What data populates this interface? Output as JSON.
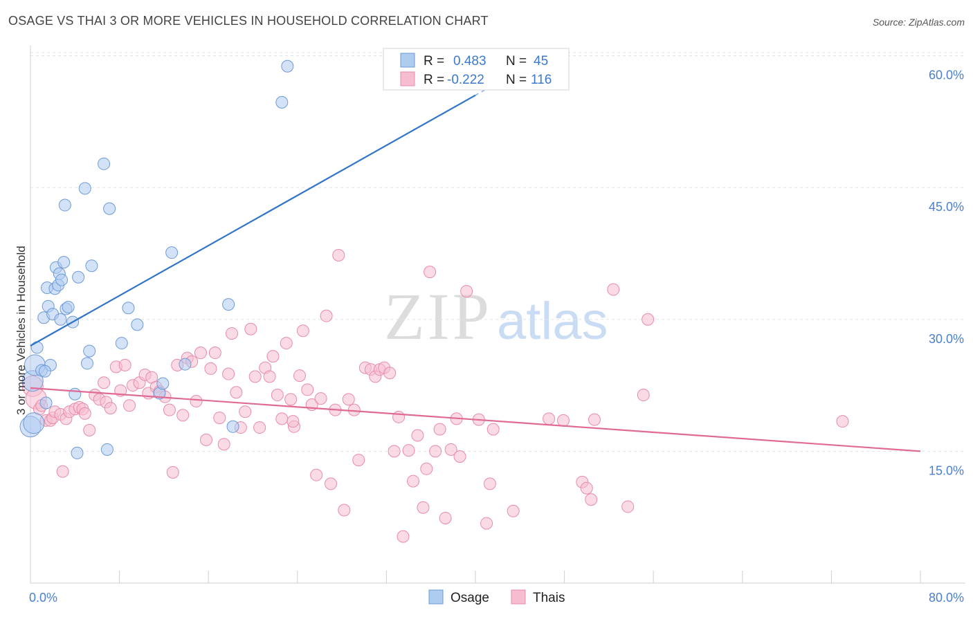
{
  "header": {
    "title": "OSAGE VS THAI 3 OR MORE VEHICLES IN HOUSEHOLD CORRELATION CHART",
    "source": "Source: ZipAtlas.com"
  },
  "watermark": {
    "zip": "ZIP",
    "atlas": "atlas"
  },
  "legend": {
    "osage": {
      "r_label": "R =",
      "r_value": "0.483",
      "n_label": "N =",
      "n_value": "45"
    },
    "thais": {
      "r_label": "R =",
      "r_value": "-0.222",
      "n_label": "N =",
      "n_value": "116"
    }
  },
  "colors": {
    "osage_fill": "#aecbf0",
    "osage_stroke": "#6c9ad8",
    "osage_line": "#2f74c8",
    "thais_fill": "#f6bdd0",
    "thais_stroke": "#e88aa9",
    "thais_line": "#e06a96",
    "grid": "#e3e3e3",
    "tick_label": "#4a7fd0"
  },
  "chart_data": {
    "type": "scatter",
    "title": "OSAGE VS THAI 3 OR MORE VEHICLES IN HOUSEHOLD CORRELATION CHART",
    "xlabel": "",
    "ylabel": "3 or more Vehicles in Household",
    "xlim": [
      0,
      80
    ],
    "ylim": [
      0,
      60
    ],
    "x_tick_labels": [
      "0.0%",
      "80.0%"
    ],
    "y_ticks": [
      15,
      30,
      45,
      60
    ],
    "y_tick_labels": [
      "15.0%",
      "30.0%",
      "45.0%",
      "60.0%"
    ],
    "legend_bottom": [
      "Osage",
      "Thais"
    ],
    "series": [
      {
        "name": "Osage",
        "trend": {
          "x0": 0,
          "y0": 27.0,
          "x1": 40,
          "y1": 55.5,
          "dashed_to_x": 46
        },
        "points": [
          [
            0.0,
            17.8
          ],
          [
            0.2,
            23.0
          ],
          [
            0.4,
            24.8
          ],
          [
            0.6,
            26.8
          ],
          [
            1.0,
            24.2
          ],
          [
            1.2,
            30.2
          ],
          [
            1.4,
            20.5
          ],
          [
            1.5,
            33.6
          ],
          [
            1.6,
            31.5
          ],
          [
            1.8,
            24.8
          ],
          [
            2.0,
            30.6
          ],
          [
            2.2,
            33.5
          ],
          [
            2.3,
            35.9
          ],
          [
            2.5,
            33.9
          ],
          [
            2.6,
            35.2
          ],
          [
            2.7,
            30.0
          ],
          [
            2.8,
            34.5
          ],
          [
            3.0,
            36.5
          ],
          [
            3.1,
            43.0
          ],
          [
            3.2,
            31.2
          ],
          [
            3.4,
            31.4
          ],
          [
            3.8,
            29.7
          ],
          [
            4.0,
            21.5
          ],
          [
            4.2,
            14.8
          ],
          [
            4.3,
            34.8
          ],
          [
            4.9,
            44.9
          ],
          [
            5.1,
            25.0
          ],
          [
            5.3,
            26.4
          ],
          [
            5.5,
            36.1
          ],
          [
            6.6,
            47.7
          ],
          [
            6.9,
            15.2
          ],
          [
            7.1,
            42.6
          ],
          [
            8.2,
            27.3
          ],
          [
            8.8,
            31.3
          ],
          [
            9.6,
            29.4
          ],
          [
            11.6,
            21.6
          ],
          [
            11.9,
            22.7
          ],
          [
            12.7,
            37.6
          ],
          [
            13.9,
            24.9
          ],
          [
            17.8,
            31.7
          ],
          [
            18.2,
            17.8
          ],
          [
            22.6,
            54.7
          ],
          [
            23.1,
            58.8
          ],
          [
            0.3,
            18.2
          ],
          [
            1.3,
            24.1
          ]
        ]
      },
      {
        "name": "Thais",
        "trend": {
          "x0": 0,
          "y0": 22.2,
          "x1": 80,
          "y1": 15.0
        },
        "points": [
          [
            0.2,
            22.4
          ],
          [
            0.5,
            21.0
          ],
          [
            0.8,
            19.8
          ],
          [
            1.0,
            20.2
          ],
          [
            1.4,
            18.5
          ],
          [
            1.8,
            18.5
          ],
          [
            2.0,
            18.8
          ],
          [
            2.2,
            19.5
          ],
          [
            2.7,
            19.2
          ],
          [
            2.9,
            12.7
          ],
          [
            3.2,
            18.7
          ],
          [
            3.5,
            19.5
          ],
          [
            4.0,
            19.8
          ],
          [
            4.4,
            20.0
          ],
          [
            4.7,
            19.8
          ],
          [
            4.9,
            19.3
          ],
          [
            5.3,
            17.4
          ],
          [
            5.8,
            21.4
          ],
          [
            6.2,
            20.9
          ],
          [
            6.6,
            22.8
          ],
          [
            6.8,
            20.6
          ],
          [
            7.2,
            19.9
          ],
          [
            7.7,
            24.6
          ],
          [
            8.1,
            21.9
          ],
          [
            8.5,
            24.8
          ],
          [
            8.9,
            20.2
          ],
          [
            9.2,
            22.5
          ],
          [
            9.8,
            22.8
          ],
          [
            10.3,
            23.7
          ],
          [
            10.6,
            21.6
          ],
          [
            10.9,
            23.4
          ],
          [
            11.3,
            22.3
          ],
          [
            11.6,
            21.8
          ],
          [
            12.1,
            21.2
          ],
          [
            12.5,
            19.7
          ],
          [
            12.8,
            12.6
          ],
          [
            13.2,
            24.8
          ],
          [
            13.7,
            19.1
          ],
          [
            14.1,
            25.6
          ],
          [
            14.5,
            25.2
          ],
          [
            14.9,
            20.7
          ],
          [
            15.3,
            26.2
          ],
          [
            15.8,
            16.3
          ],
          [
            16.2,
            24.4
          ],
          [
            16.6,
            26.2
          ],
          [
            17.0,
            18.8
          ],
          [
            17.4,
            15.8
          ],
          [
            17.8,
            23.8
          ],
          [
            18.1,
            28.4
          ],
          [
            18.5,
            21.7
          ],
          [
            18.9,
            17.7
          ],
          [
            19.3,
            19.5
          ],
          [
            19.8,
            28.9
          ],
          [
            20.2,
            23.5
          ],
          [
            20.6,
            17.7
          ],
          [
            21.1,
            24.5
          ],
          [
            21.5,
            23.5
          ],
          [
            21.8,
            25.8
          ],
          [
            22.2,
            21.4
          ],
          [
            22.6,
            18.7
          ],
          [
            23.0,
            27.3
          ],
          [
            23.4,
            20.9
          ],
          [
            23.7,
            17.8
          ],
          [
            24.2,
            23.6
          ],
          [
            24.5,
            28.7
          ],
          [
            24.9,
            22.0
          ],
          [
            25.3,
            20.3
          ],
          [
            25.7,
            12.3
          ],
          [
            26.1,
            21.0
          ],
          [
            26.6,
            30.4
          ],
          [
            27.0,
            11.3
          ],
          [
            27.4,
            19.7
          ],
          [
            27.7,
            37.3
          ],
          [
            28.2,
            8.3
          ],
          [
            28.6,
            20.9
          ],
          [
            29.1,
            19.7
          ],
          [
            29.5,
            14.0
          ],
          [
            30.1,
            24.5
          ],
          [
            30.6,
            24.3
          ],
          [
            31.0,
            23.5
          ],
          [
            31.4,
            24.3
          ],
          [
            31.8,
            24.5
          ],
          [
            32.3,
            23.9
          ],
          [
            32.7,
            15.0
          ],
          [
            33.1,
            18.9
          ],
          [
            33.5,
            5.3
          ],
          [
            34.0,
            15.1
          ],
          [
            34.4,
            11.6
          ],
          [
            34.8,
            16.8
          ],
          [
            35.3,
            8.6
          ],
          [
            35.6,
            13.0
          ],
          [
            35.9,
            35.4
          ],
          [
            36.4,
            15.0
          ],
          [
            36.8,
            17.5
          ],
          [
            37.3,
            7.4
          ],
          [
            37.8,
            15.2
          ],
          [
            38.3,
            18.7
          ],
          [
            38.6,
            14.4
          ],
          [
            39.2,
            33.2
          ],
          [
            40.3,
            18.6
          ],
          [
            41.0,
            6.8
          ],
          [
            41.3,
            11.3
          ],
          [
            41.6,
            17.5
          ],
          [
            43.4,
            8.2
          ],
          [
            46.6,
            18.7
          ],
          [
            47.9,
            18.5
          ],
          [
            49.6,
            11.5
          ],
          [
            50.0,
            10.8
          ],
          [
            50.4,
            9.5
          ],
          [
            50.7,
            18.6
          ],
          [
            52.4,
            33.4
          ],
          [
            53.7,
            8.7
          ],
          [
            55.1,
            21.4
          ],
          [
            55.5,
            30.0
          ],
          [
            73.0,
            18.4
          ],
          [
            23.6,
            18.4
          ]
        ]
      }
    ]
  }
}
